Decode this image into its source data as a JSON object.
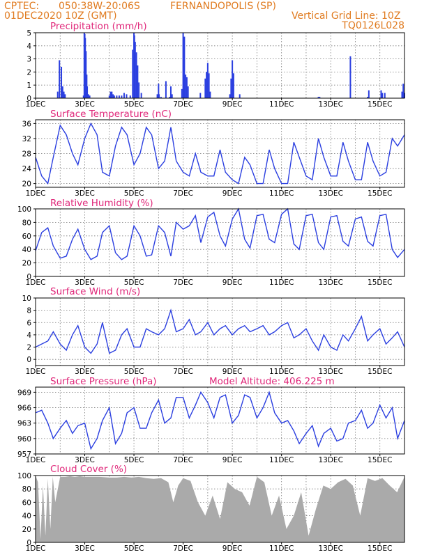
{
  "header": {
    "source": "CPTEC:",
    "coords": "050:38W-20:06S",
    "station": "FERNANDOPOLIS (SP)",
    "date": "01DEC2020 10Z (GMT)",
    "grid_note": "Vertical Grid Line: 10Z",
    "code": "TQ0126L028"
  },
  "x_tick_labels": [
    "1DEC",
    "3DEC",
    "5DEC",
    "7DEC",
    "9DEC",
    "11DEC",
    "13DEC",
    "15DEC"
  ],
  "colors": {
    "header": "#e07b20",
    "panel_title": "#e0287a",
    "series": "#2b3fe0",
    "cloud": "#aaaaaa"
  },
  "chart_data": [
    {
      "type": "bar",
      "title": "Precipitation (mm/h)",
      "xlim": [
        0,
        15
      ],
      "ylim": [
        0,
        5
      ],
      "yticks": [
        0,
        1,
        2,
        3,
        4,
        5
      ],
      "x": [
        0.9,
        0.97,
        1.05,
        1.1,
        1.15,
        1.2,
        1.95,
        1.98,
        2.0,
        2.02,
        2.05,
        2.08,
        2.1,
        2.15,
        2.2,
        3.0,
        3.05,
        3.1,
        3.15,
        3.2,
        3.3,
        3.4,
        3.5,
        3.6,
        3.7,
        3.85,
        3.95,
        4.0,
        4.02,
        4.05,
        4.1,
        4.15,
        4.2,
        4.3,
        4.95,
        5.0,
        5.02,
        5.1,
        5.3,
        5.45,
        5.5,
        5.55,
        5.95,
        6.0,
        6.05,
        6.1,
        6.15,
        6.2,
        6.7,
        6.9,
        6.95,
        7.0,
        7.05,
        7.1,
        7.9,
        7.95,
        8.0,
        8.05,
        8.3,
        11.5,
        11.55,
        12.8,
        13.5,
        13.55,
        14.05,
        14.1,
        14.2,
        14.9,
        14.95,
        15.0
      ],
      "values": [
        0.5,
        2.9,
        2.4,
        0.9,
        0.5,
        0.3,
        0.2,
        5.0,
        4.9,
        4.6,
        3.6,
        1.8,
        0.9,
        0.3,
        0.2,
        0.2,
        0.5,
        0.5,
        0.3,
        0.2,
        0.2,
        0.2,
        0.2,
        0.4,
        0.3,
        0.2,
        3.7,
        5.0,
        4.8,
        4.3,
        3.5,
        2.5,
        1.2,
        0.4,
        0.3,
        1.1,
        0.3,
        0.1,
        1.3,
        0.1,
        0.9,
        0.3,
        0.7,
        5.0,
        4.7,
        1.8,
        1.6,
        0.9,
        0.4,
        1.5,
        2.0,
        2.7,
        1.9,
        0.5,
        0.3,
        1.5,
        2.9,
        1.9,
        0.3,
        0.1,
        0.1,
        3.2,
        0.1,
        0.6,
        0.6,
        0.4,
        0.4,
        0.5,
        1.1,
        0.4
      ],
      "xlabel": "",
      "ylabel": ""
    },
    {
      "type": "line",
      "title": "Surface Temperature (nC)",
      "xlim": [
        0,
        15
      ],
      "ylim": [
        19,
        37
      ],
      "yticks": [
        20,
        24,
        28,
        32,
        36
      ],
      "x": [
        0,
        0.25,
        0.5,
        0.72,
        1.0,
        1.25,
        1.5,
        1.72,
        2.0,
        2.25,
        2.5,
        2.72,
        3.0,
        3.25,
        3.5,
        3.72,
        4.0,
        4.25,
        4.5,
        4.72,
        5.0,
        5.25,
        5.5,
        5.72,
        6.0,
        6.25,
        6.5,
        6.72,
        7.0,
        7.25,
        7.5,
        7.72,
        8.0,
        8.25,
        8.5,
        8.72,
        9.0,
        9.25,
        9.5,
        9.72,
        10.0,
        10.25,
        10.5,
        10.72,
        11.0,
        11.25,
        11.5,
        11.72,
        12.0,
        12.25,
        12.5,
        12.72,
        13.0,
        13.25,
        13.5,
        13.72,
        14.0,
        14.25,
        14.5,
        14.72,
        15.0
      ],
      "values": [
        27,
        22,
        20,
        27,
        35.5,
        33,
        28,
        25,
        32,
        36,
        33,
        23,
        22,
        30,
        35,
        33,
        25,
        28,
        35,
        33,
        24,
        26,
        35,
        26,
        23,
        22,
        28,
        23,
        22,
        22,
        29,
        23,
        21,
        20,
        27,
        25,
        20,
        20,
        29,
        24,
        20,
        20,
        31,
        27,
        22,
        21,
        32,
        27,
        22,
        22,
        31,
        26,
        21,
        21,
        31,
        26,
        22,
        23,
        32,
        30,
        33
      ],
      "xlabel": "",
      "ylabel": ""
    },
    {
      "type": "line",
      "title": "Relative Humidity (%)",
      "xlim": [
        0,
        15
      ],
      "ylim": [
        0,
        100
      ],
      "yticks": [
        0,
        20,
        40,
        60,
        80,
        100
      ],
      "x": [
        0,
        0.25,
        0.5,
        0.72,
        1.0,
        1.25,
        1.5,
        1.72,
        2.0,
        2.25,
        2.5,
        2.72,
        3.0,
        3.25,
        3.5,
        3.72,
        4.0,
        4.25,
        4.5,
        4.72,
        5.0,
        5.25,
        5.5,
        5.72,
        6.0,
        6.25,
        6.5,
        6.72,
        7.0,
        7.25,
        7.5,
        7.72,
        8.0,
        8.25,
        8.5,
        8.72,
        9.0,
        9.25,
        9.5,
        9.72,
        10.0,
        10.25,
        10.5,
        10.72,
        11.0,
        11.25,
        11.5,
        11.72,
        12.0,
        12.25,
        12.5,
        12.72,
        13.0,
        13.25,
        13.5,
        13.72,
        14.0,
        14.25,
        14.5,
        14.72,
        15.0
      ],
      "values": [
        38,
        65,
        72,
        45,
        27,
        30,
        55,
        70,
        40,
        25,
        30,
        65,
        75,
        35,
        25,
        30,
        75,
        60,
        30,
        32,
        75,
        65,
        30,
        80,
        70,
        75,
        90,
        50,
        88,
        95,
        60,
        45,
        85,
        100,
        55,
        42,
        90,
        92,
        55,
        50,
        92,
        100,
        48,
        40,
        90,
        92,
        50,
        40,
        88,
        90,
        52,
        45,
        85,
        88,
        52,
        45,
        90,
        92,
        40,
        28,
        40
      ],
      "xlabel": "",
      "ylabel": ""
    },
    {
      "type": "line",
      "title": "Surface Wind (m/s)",
      "xlim": [
        0,
        15
      ],
      "ylim": [
        -1,
        10
      ],
      "yticks": [
        0,
        2,
        4,
        6,
        8,
        10
      ],
      "x": [
        0,
        0.25,
        0.5,
        0.72,
        1.0,
        1.25,
        1.5,
        1.72,
        2.0,
        2.25,
        2.5,
        2.72,
        3.0,
        3.25,
        3.5,
        3.72,
        4.0,
        4.25,
        4.5,
        4.72,
        5.0,
        5.25,
        5.5,
        5.72,
        6.0,
        6.25,
        6.5,
        6.72,
        7.0,
        7.25,
        7.5,
        7.72,
        8.0,
        8.25,
        8.5,
        8.72,
        9.0,
        9.25,
        9.5,
        9.72,
        10.0,
        10.25,
        10.5,
        10.72,
        11.0,
        11.25,
        11.5,
        11.72,
        12.0,
        12.25,
        12.5,
        12.72,
        13.0,
        13.25,
        13.5,
        13.72,
        14.0,
        14.25,
        14.5,
        14.72,
        15.0
      ],
      "values": [
        2,
        2.5,
        3,
        4.5,
        2.5,
        1.5,
        4,
        5.5,
        2,
        1,
        2.5,
        6,
        1,
        1.5,
        4,
        5,
        2,
        2,
        5,
        4.5,
        4,
        5,
        8,
        4.5,
        5,
        6.5,
        4,
        4.5,
        6,
        4,
        5,
        5.5,
        4,
        5,
        5.5,
        4.5,
        5,
        5.5,
        4,
        4.5,
        5.5,
        6,
        3.5,
        4,
        5,
        3,
        1.5,
        4,
        2,
        1.5,
        4,
        3,
        5,
        7,
        3,
        4,
        5,
        2.5,
        3.5,
        4.5,
        2
      ],
      "xlabel": "",
      "ylabel": ""
    },
    {
      "type": "line",
      "title": "Surface Pressure (hPa)",
      "annotation": "Model Altitude: 406.225 m",
      "xlim": [
        0,
        15
      ],
      "ylim": [
        957,
        970
      ],
      "yticks": [
        957,
        960,
        963,
        966,
        969
      ],
      "x": [
        0,
        0.25,
        0.5,
        0.72,
        1.0,
        1.25,
        1.5,
        1.72,
        2.0,
        2.25,
        2.5,
        2.72,
        3.0,
        3.25,
        3.5,
        3.72,
        4.0,
        4.25,
        4.5,
        4.72,
        5.0,
        5.25,
        5.5,
        5.72,
        6.0,
        6.25,
        6.5,
        6.72,
        7.0,
        7.25,
        7.5,
        7.72,
        8.0,
        8.25,
        8.5,
        8.72,
        9.0,
        9.25,
        9.5,
        9.72,
        10.0,
        10.25,
        10.5,
        10.72,
        11.0,
        11.25,
        11.5,
        11.72,
        12.0,
        12.25,
        12.5,
        12.72,
        13.0,
        13.25,
        13.5,
        13.72,
        14.0,
        14.25,
        14.5,
        14.72,
        15.0
      ],
      "values": [
        965,
        965.5,
        963,
        960,
        962,
        963.5,
        961,
        962.5,
        963,
        958,
        960,
        963.5,
        966,
        959,
        961,
        965,
        966,
        962,
        962,
        965,
        967.5,
        963,
        964,
        968,
        968,
        964,
        966.5,
        969,
        967,
        964,
        968,
        968.5,
        963,
        964.5,
        968.5,
        968,
        964,
        966,
        969,
        965,
        963,
        963.5,
        961.5,
        959,
        961,
        962.5,
        958.5,
        961,
        962,
        959.5,
        960,
        963,
        963.5,
        965.5,
        962,
        963,
        966.5,
        964,
        966,
        960,
        963.5
      ],
      "xlabel": "",
      "ylabel": ""
    },
    {
      "type": "area",
      "title": "Cloud Cover (%)",
      "xlim": [
        0,
        15
      ],
      "ylim": [
        0,
        100
      ],
      "yticks": [
        0,
        20,
        40,
        60,
        80,
        100
      ],
      "x": [
        0,
        0.1,
        0.2,
        0.3,
        0.4,
        0.5,
        0.6,
        0.7,
        0.8,
        1.0,
        1.2,
        1.4,
        1.6,
        1.8,
        2.0,
        2.3,
        2.6,
        3.0,
        3.3,
        3.6,
        3.9,
        4.2,
        4.5,
        4.8,
        5.1,
        5.4,
        5.6,
        5.8,
        6.0,
        6.3,
        6.6,
        6.9,
        7.2,
        7.5,
        7.8,
        8.1,
        8.4,
        8.7,
        9.0,
        9.3,
        9.6,
        9.9,
        10.2,
        10.5,
        10.8,
        11.1,
        11.4,
        11.7,
        12.0,
        12.3,
        12.6,
        12.9,
        13.2,
        13.5,
        13.8,
        14.1,
        14.4,
        14.7,
        15.0
      ],
      "values": [
        100,
        90,
        5,
        85,
        10,
        95,
        20,
        98,
        60,
        98,
        98,
        99,
        98,
        99,
        98,
        98,
        98,
        97,
        97,
        98,
        97,
        98,
        96,
        95,
        96,
        90,
        60,
        85,
        96,
        92,
        60,
        40,
        70,
        35,
        90,
        80,
        75,
        55,
        98,
        90,
        40,
        70,
        20,
        40,
        75,
        10,
        50,
        85,
        80,
        90,
        95,
        85,
        40,
        96,
        92,
        96,
        85,
        75,
        98
      ],
      "xlabel": "",
      "ylabel": ""
    }
  ]
}
